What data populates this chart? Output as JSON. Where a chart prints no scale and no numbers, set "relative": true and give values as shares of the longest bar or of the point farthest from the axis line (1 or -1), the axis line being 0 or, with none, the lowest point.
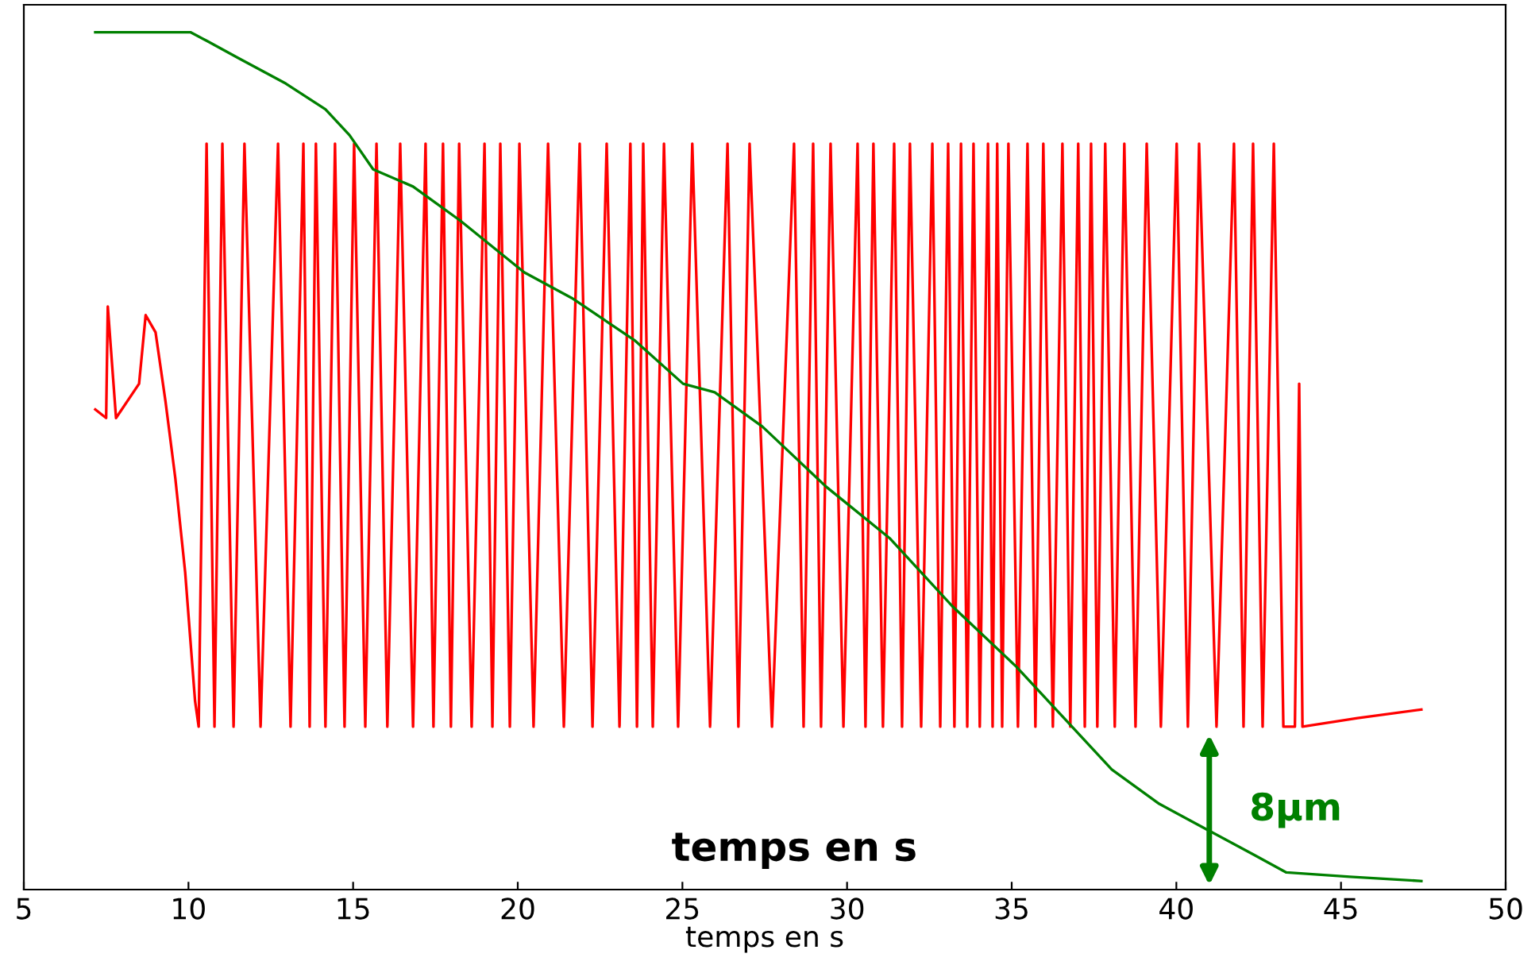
{
  "chart_data": {
    "type": "line",
    "relative": true,
    "xlabel": "temps en s",
    "xlim": [
      5,
      50
    ],
    "xticks": [
      5,
      10,
      15,
      20,
      25,
      30,
      35,
      40,
      45,
      50
    ],
    "grid": false,
    "legend": false,
    "marker": "none",
    "line_style": "solid",
    "series": [
      {
        "color": "#ff0000",
        "x": [
          7.17,
          7.5,
          7.55,
          7.8,
          8.5,
          8.7,
          9.0,
          9.3,
          9.6,
          9.9,
          10.2,
          10.31,
          10.55,
          10.79,
          11.03,
          11.37,
          11.7,
          12.19,
          12.72,
          13.1,
          13.49,
          13.68,
          13.87,
          14.16,
          14.45,
          14.74,
          15.03,
          15.37,
          15.71,
          16.04,
          16.43,
          16.82,
          17.2,
          17.44,
          17.73,
          17.97,
          18.22,
          18.6,
          18.99,
          19.23,
          19.47,
          19.76,
          20.05,
          20.48,
          20.92,
          21.4,
          21.88,
          22.27,
          22.7,
          23.09,
          23.42,
          23.62,
          23.81,
          24.1,
          24.44,
          24.87,
          25.3,
          25.84,
          26.37,
          26.7,
          27.04,
          27.72,
          28.39,
          28.68,
          28.97,
          29.21,
          29.5,
          29.89,
          30.32,
          30.56,
          30.8,
          31.09,
          31.43,
          31.67,
          31.91,
          32.25,
          32.59,
          32.83,
          33.07,
          33.26,
          33.46,
          33.65,
          33.84,
          34.03,
          34.28,
          34.42,
          34.56,
          34.71,
          34.9,
          35.19,
          35.48,
          35.72,
          35.96,
          36.25,
          36.54,
          36.78,
          37.02,
          37.22,
          37.41,
          37.6,
          37.84,
          38.13,
          38.42,
          38.76,
          39.1,
          39.53,
          40.01,
          40.35,
          40.69,
          41.22,
          41.75,
          42.04,
          42.33,
          42.62,
          42.96,
          43.25,
          43.6,
          43.73,
          43.83,
          45.5,
          47.44
        ],
        "values": [
          0.56,
          0.55,
          0.68,
          0.55,
          0.59,
          0.67,
          0.65,
          0.57,
          0.48,
          0.37,
          0.22,
          0.19,
          0.87,
          0.19,
          0.87,
          0.19,
          0.87,
          0.19,
          0.87,
          0.19,
          0.87,
          0.19,
          0.87,
          0.19,
          0.87,
          0.19,
          0.87,
          0.19,
          0.87,
          0.19,
          0.87,
          0.19,
          0.87,
          0.19,
          0.87,
          0.19,
          0.87,
          0.19,
          0.87,
          0.19,
          0.87,
          0.19,
          0.87,
          0.19,
          0.87,
          0.19,
          0.87,
          0.19,
          0.87,
          0.19,
          0.87,
          0.19,
          0.87,
          0.19,
          0.87,
          0.19,
          0.87,
          0.19,
          0.87,
          0.19,
          0.87,
          0.19,
          0.87,
          0.19,
          0.87,
          0.19,
          0.87,
          0.19,
          0.87,
          0.19,
          0.87,
          0.19,
          0.87,
          0.19,
          0.87,
          0.19,
          0.87,
          0.19,
          0.87,
          0.19,
          0.87,
          0.19,
          0.87,
          0.19,
          0.87,
          0.19,
          0.87,
          0.19,
          0.87,
          0.19,
          0.87,
          0.19,
          0.87,
          0.19,
          0.87,
          0.19,
          0.87,
          0.19,
          0.87,
          0.19,
          0.87,
          0.19,
          0.87,
          0.19,
          0.87,
          0.19,
          0.87,
          0.19,
          0.87,
          0.19,
          0.87,
          0.19,
          0.87,
          0.19,
          0.87,
          0.19,
          0.19,
          0.59,
          0.19,
          0.2,
          0.21
        ]
      },
      {
        "color": "#008000",
        "x": [
          7.17,
          10.06,
          10.55,
          11.51,
          12.96,
          14.16,
          14.89,
          15.61,
          16.82,
          18.26,
          20.19,
          21.64,
          23.57,
          25.02,
          25.98,
          27.43,
          29.36,
          31.29,
          33.21,
          35.14,
          36.59,
          38.04,
          39.48,
          40.93,
          42.38,
          43.34,
          45.27,
          47.44
        ],
        "values": [
          1.0,
          1.0,
          0.99,
          0.97,
          0.94,
          0.91,
          0.88,
          0.84,
          0.82,
          0.78,
          0.72,
          0.69,
          0.64,
          0.59,
          0.58,
          0.54,
          0.47,
          0.41,
          0.33,
          0.26,
          0.2,
          0.14,
          0.1,
          0.07,
          0.04,
          0.02,
          0.015,
          0.01
        ]
      }
    ],
    "annotations": [
      "temps en s",
      "8µm"
    ]
  }
}
